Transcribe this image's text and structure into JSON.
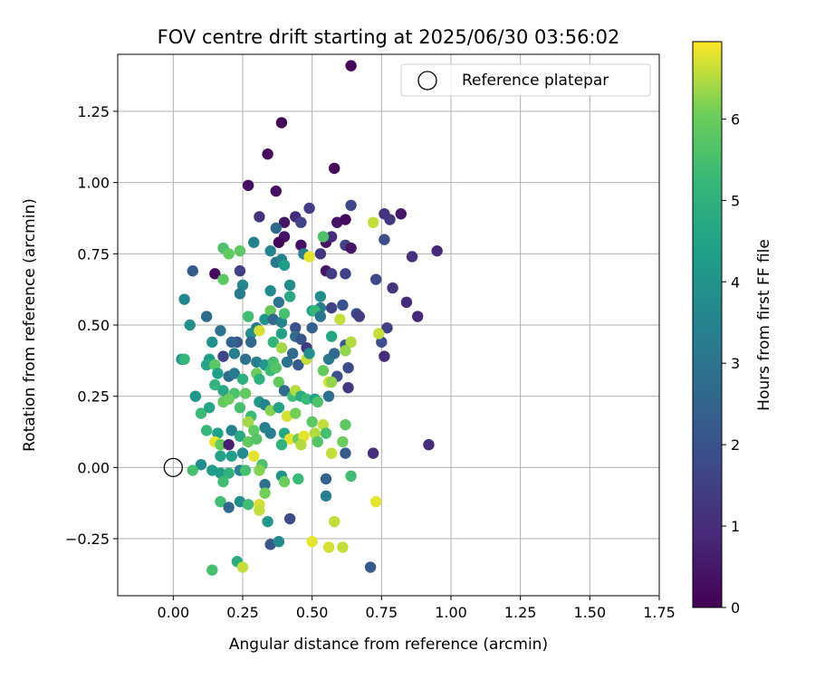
{
  "chart_data": {
    "type": "scatter",
    "title": "FOV centre drift starting at 2025/06/30 03:56:02",
    "xlabel": "Angular distance from reference (arcmin)",
    "ylabel": "Rotation from reference (arcmin)",
    "xlim": [
      -0.2,
      1.75
    ],
    "ylim": [
      -0.45,
      1.45
    ],
    "xticks": [
      0.0,
      0.25,
      0.5,
      0.75,
      1.0,
      1.25,
      1.5,
      1.75
    ],
    "xtick_labels": [
      "0.00",
      "0.25",
      "0.50",
      "0.75",
      "1.00",
      "1.25",
      "1.50",
      "1.75"
    ],
    "yticks": [
      -0.25,
      0.0,
      0.25,
      0.5,
      0.75,
      1.0,
      1.25
    ],
    "ytick_labels": [
      "−0.25",
      "0.00",
      "0.25",
      "0.50",
      "0.75",
      "1.00",
      "1.25"
    ],
    "grid": true,
    "legend": {
      "position": "top-right",
      "entries": [
        {
          "label": "Reference platepar",
          "marker": "open-circle"
        }
      ]
    },
    "reference_point": {
      "name": "Reference platepar",
      "x": 0.0,
      "y": 0.0
    },
    "colorbar": {
      "label": "Hours from first FF file",
      "colormap": "viridis",
      "range": [
        0,
        6.95
      ],
      "ticks": [
        0,
        1,
        2,
        3,
        4,
        5,
        6
      ],
      "tick_labels": [
        "0",
        "1",
        "2",
        "3",
        "4",
        "5",
        "6"
      ]
    },
    "points": [
      [
        0.64,
        1.41,
        0.1
      ],
      [
        0.39,
        1.21,
        0.1
      ],
      [
        0.34,
        1.1,
        0.2
      ],
      [
        0.58,
        1.05,
        0.2
      ],
      [
        0.27,
        0.99,
        0.3
      ],
      [
        0.37,
        0.97,
        0.3
      ],
      [
        0.31,
        0.88,
        1.1
      ],
      [
        0.4,
        0.86,
        0.5
      ],
      [
        0.44,
        0.88,
        1.0
      ],
      [
        0.49,
        0.91,
        1.4
      ],
      [
        0.59,
        0.86,
        0.4
      ],
      [
        0.62,
        0.87,
        0.2
      ],
      [
        0.64,
        0.92,
        1.7
      ],
      [
        0.76,
        0.89,
        1.2
      ],
      [
        0.82,
        0.89,
        0.5
      ],
      [
        0.78,
        0.87,
        1.3
      ],
      [
        0.37,
        0.84,
        2.6
      ],
      [
        0.46,
        0.86,
        1.6
      ],
      [
        0.4,
        0.81,
        0.4
      ],
      [
        0.38,
        0.79,
        0.1
      ],
      [
        0.46,
        0.78,
        0.3
      ],
      [
        0.55,
        0.79,
        0.4
      ],
      [
        0.57,
        0.81,
        1.0
      ],
      [
        0.62,
        0.78,
        1.5
      ],
      [
        0.64,
        0.77,
        0.4
      ],
      [
        0.72,
        0.86,
        6.6
      ],
      [
        0.76,
        0.8,
        1.9
      ],
      [
        0.86,
        0.74,
        1.1
      ],
      [
        0.95,
        0.76,
        0.9
      ],
      [
        0.54,
        0.81,
        5.6
      ],
      [
        0.18,
        0.77,
        5.6
      ],
      [
        0.2,
        0.75,
        5.9
      ],
      [
        0.24,
        0.76,
        5.8
      ],
      [
        0.29,
        0.79,
        3.4
      ],
      [
        0.35,
        0.76,
        3.5
      ],
      [
        0.07,
        0.69,
        2.2
      ],
      [
        0.15,
        0.68,
        0.2
      ],
      [
        0.18,
        0.66,
        5.8
      ],
      [
        0.24,
        0.69,
        1.5
      ],
      [
        0.37,
        0.72,
        3.1
      ],
      [
        0.39,
        0.73,
        3.4
      ],
      [
        0.4,
        0.71,
        4.3
      ],
      [
        0.47,
        0.75,
        3.3
      ],
      [
        0.49,
        0.74,
        6.8
      ],
      [
        0.53,
        0.75,
        1.3
      ],
      [
        0.55,
        0.69,
        0.4
      ],
      [
        0.57,
        0.68,
        1.4
      ],
      [
        0.62,
        0.68,
        1.6
      ],
      [
        0.73,
        0.66,
        1.7
      ],
      [
        0.79,
        0.63,
        1.2
      ],
      [
        0.84,
        0.58,
        1.0
      ],
      [
        0.88,
        0.53,
        0.9
      ],
      [
        0.25,
        0.64,
        3.6
      ],
      [
        0.24,
        0.61,
        3.2
      ],
      [
        0.35,
        0.62,
        3.7
      ],
      [
        0.38,
        0.58,
        3.0
      ],
      [
        0.42,
        0.64,
        3.8
      ],
      [
        0.42,
        0.6,
        4.7
      ],
      [
        0.53,
        0.6,
        3.8
      ],
      [
        0.53,
        0.56,
        3.3
      ],
      [
        0.57,
        0.56,
        1.6
      ],
      [
        0.61,
        0.57,
        2.0
      ],
      [
        0.04,
        0.59,
        3.6
      ],
      [
        0.06,
        0.5,
        3.9
      ],
      [
        0.12,
        0.53,
        2.7
      ],
      [
        0.17,
        0.48,
        3.0
      ],
      [
        0.27,
        0.53,
        5.4
      ],
      [
        0.3,
        0.49,
        3.2
      ],
      [
        0.33,
        0.52,
        4.0
      ],
      [
        0.35,
        0.55,
        5.9
      ],
      [
        0.36,
        0.52,
        2.6
      ],
      [
        0.39,
        0.51,
        3.5
      ],
      [
        0.4,
        0.54,
        5.5
      ],
      [
        0.44,
        0.49,
        2.0
      ],
      [
        0.5,
        0.55,
        4.3
      ],
      [
        0.51,
        0.55,
        5.2
      ],
      [
        0.53,
        0.53,
        3.0
      ],
      [
        0.6,
        0.52,
        6.6
      ],
      [
        0.66,
        0.54,
        1.8
      ],
      [
        0.67,
        0.53,
        1.4
      ],
      [
        0.77,
        0.49,
        1.5
      ],
      [
        0.75,
        0.44,
        1.9
      ],
      [
        0.74,
        0.47,
        6.6
      ],
      [
        0.76,
        0.39,
        1.0
      ],
      [
        0.28,
        0.47,
        3.8
      ],
      [
        0.31,
        0.48,
        6.7
      ],
      [
        0.36,
        0.44,
        5.1
      ],
      [
        0.39,
        0.47,
        4.5
      ],
      [
        0.44,
        0.46,
        2.8
      ],
      [
        0.46,
        0.45,
        2.1
      ],
      [
        0.48,
        0.42,
        1.4
      ],
      [
        0.5,
        0.49,
        2.4
      ],
      [
        0.57,
        0.46,
        4.6
      ],
      [
        0.62,
        0.43,
        2.2
      ],
      [
        0.64,
        0.44,
        6.5
      ],
      [
        0.62,
        0.41,
        6.3
      ],
      [
        0.28,
        0.44,
        2.6
      ],
      [
        0.23,
        0.44,
        2.1
      ],
      [
        0.21,
        0.44,
        2.5
      ],
      [
        0.14,
        0.44,
        3.9
      ],
      [
        0.18,
        0.39,
        1.6
      ],
      [
        0.22,
        0.4,
        3.4
      ],
      [
        0.26,
        0.38,
        2.9
      ],
      [
        0.3,
        0.37,
        3.3
      ],
      [
        0.33,
        0.36,
        4.1
      ],
      [
        0.36,
        0.37,
        5.5
      ],
      [
        0.39,
        0.42,
        6.4
      ],
      [
        0.41,
        0.37,
        3.0
      ],
      [
        0.43,
        0.4,
        2.7
      ],
      [
        0.45,
        0.36,
        2.2
      ],
      [
        0.48,
        0.38,
        6.6
      ],
      [
        0.49,
        0.4,
        3.9
      ],
      [
        0.56,
        0.38,
        3.2
      ],
      [
        0.58,
        0.4,
        2.6
      ],
      [
        0.63,
        0.35,
        1.8
      ],
      [
        0.56,
        0.3,
        6.7
      ],
      [
        0.59,
        0.32,
        1.9
      ],
      [
        0.63,
        0.28,
        1.3
      ],
      [
        0.54,
        0.34,
        5.9
      ],
      [
        0.03,
        0.38,
        4.0
      ],
      [
        0.04,
        0.38,
        5.2
      ],
      [
        0.13,
        0.38,
        4.3
      ],
      [
        0.12,
        0.36,
        4.6
      ],
      [
        0.15,
        0.36,
        5.8
      ],
      [
        0.16,
        0.33,
        4.4
      ],
      [
        0.2,
        0.32,
        2.7
      ],
      [
        0.22,
        0.33,
        3.2
      ],
      [
        0.25,
        0.31,
        4.9
      ],
      [
        0.3,
        0.33,
        6.0
      ],
      [
        0.31,
        0.31,
        5.0
      ],
      [
        0.35,
        0.34,
        5.3
      ],
      [
        0.37,
        0.35,
        5.7
      ],
      [
        0.38,
        0.3,
        5.9
      ],
      [
        0.4,
        0.27,
        2.7
      ],
      [
        0.43,
        0.25,
        5.4
      ],
      [
        0.44,
        0.27,
        6.5
      ],
      [
        0.46,
        0.25,
        4.8
      ],
      [
        0.48,
        0.24,
        5.3
      ],
      [
        0.51,
        0.24,
        4.5
      ],
      [
        0.52,
        0.23,
        5.6
      ],
      [
        0.56,
        0.25,
        2.8
      ],
      [
        0.57,
        0.3,
        6.3
      ],
      [
        0.15,
        0.29,
        5.1
      ],
      [
        0.18,
        0.27,
        4.7
      ],
      [
        0.22,
        0.26,
        5.6
      ],
      [
        0.26,
        0.26,
        5.9
      ],
      [
        0.08,
        0.25,
        4.1
      ],
      [
        0.1,
        0.19,
        5.3
      ],
      [
        0.13,
        0.21,
        4.6
      ],
      [
        0.18,
        0.23,
        5.9
      ],
      [
        0.2,
        0.24,
        6.0
      ],
      [
        0.24,
        0.21,
        5.5
      ],
      [
        0.28,
        0.18,
        5.3
      ],
      [
        0.31,
        0.23,
        4.2
      ],
      [
        0.33,
        0.22,
        3.5
      ],
      [
        0.35,
        0.2,
        6.2
      ],
      [
        0.38,
        0.21,
        4.5
      ],
      [
        0.41,
        0.18,
        6.7
      ],
      [
        0.44,
        0.19,
        6.1
      ],
      [
        0.5,
        0.16,
        5.8
      ],
      [
        0.54,
        0.15,
        6.6
      ],
      [
        0.62,
        0.15,
        5.8
      ],
      [
        0.12,
        0.13,
        5.2
      ],
      [
        0.16,
        0.12,
        4.4
      ],
      [
        0.21,
        0.13,
        3.5
      ],
      [
        0.24,
        0.11,
        4.7
      ],
      [
        0.27,
        0.16,
        6.4
      ],
      [
        0.29,
        0.13,
        5.9
      ],
      [
        0.33,
        0.14,
        3.4
      ],
      [
        0.35,
        0.12,
        3.3
      ],
      [
        0.4,
        0.12,
        4.7
      ],
      [
        0.42,
        0.1,
        6.8
      ],
      [
        0.45,
        0.1,
        6.0
      ],
      [
        0.47,
        0.11,
        6.8
      ],
      [
        0.51,
        0.12,
        6.5
      ],
      [
        0.52,
        0.09,
        5.7
      ],
      [
        0.55,
        0.12,
        5.5
      ],
      [
        0.15,
        0.09,
        6.8
      ],
      [
        0.17,
        0.08,
        5.9
      ],
      [
        0.2,
        0.08,
        0.7
      ],
      [
        0.27,
        0.09,
        5.9
      ],
      [
        0.3,
        0.1,
        5.7
      ],
      [
        0.39,
        0.08,
        5.0
      ],
      [
        0.46,
        0.08,
        6.5
      ],
      [
        0.61,
        0.09,
        6.0
      ],
      [
        0.62,
        0.05,
        2.2
      ],
      [
        0.57,
        0.05,
        6.6
      ],
      [
        0.72,
        0.05,
        1.0
      ],
      [
        0.92,
        0.08,
        1.0
      ],
      [
        0.17,
        0.04,
        4.5
      ],
      [
        0.21,
        0.04,
        4.4
      ],
      [
        0.25,
        0.05,
        3.8
      ],
      [
        0.29,
        0.04,
        6.8
      ],
      [
        0.32,
        0.01,
        5.6
      ],
      [
        0.1,
        0.01,
        3.8
      ],
      [
        0.14,
        -0.01,
        4.3
      ],
      [
        0.07,
        -0.01,
        5.5
      ],
      [
        0.17,
        -0.02,
        4.3
      ],
      [
        0.2,
        -0.02,
        5.0
      ],
      [
        0.24,
        -0.01,
        3.5
      ],
      [
        0.26,
        -0.01,
        5.5
      ],
      [
        0.31,
        -0.01,
        6.2
      ],
      [
        0.39,
        -0.03,
        4.0
      ],
      [
        0.4,
        -0.05,
        6.0
      ],
      [
        0.45,
        -0.04,
        5.3
      ],
      [
        0.55,
        -0.04,
        2.5
      ],
      [
        0.64,
        -0.03,
        5.4
      ],
      [
        0.18,
        -0.05,
        5.4
      ],
      [
        0.33,
        -0.06,
        2.9
      ],
      [
        0.33,
        -0.09,
        6.1
      ],
      [
        0.55,
        -0.1,
        3.3
      ],
      [
        0.17,
        -0.12,
        5.4
      ],
      [
        0.2,
        -0.14,
        2.6
      ],
      [
        0.24,
        -0.12,
        3.8
      ],
      [
        0.27,
        -0.13,
        5.4
      ],
      [
        0.31,
        -0.13,
        6.7
      ],
      [
        0.31,
        -0.15,
        6.6
      ],
      [
        0.73,
        -0.12,
        6.8
      ],
      [
        0.34,
        -0.19,
        4.2
      ],
      [
        0.42,
        -0.18,
        1.8
      ],
      [
        0.58,
        -0.19,
        6.6
      ],
      [
        0.5,
        -0.26,
        6.8
      ],
      [
        0.35,
        -0.27,
        2.1
      ],
      [
        0.38,
        -0.26,
        3.7
      ],
      [
        0.56,
        -0.28,
        6.7
      ],
      [
        0.61,
        -0.28,
        6.6
      ],
      [
        0.23,
        -0.33,
        4.8
      ],
      [
        0.25,
        -0.35,
        6.6
      ],
      [
        0.71,
        -0.35,
        2.2
      ],
      [
        0.14,
        -0.36,
        5.5
      ]
    ]
  }
}
